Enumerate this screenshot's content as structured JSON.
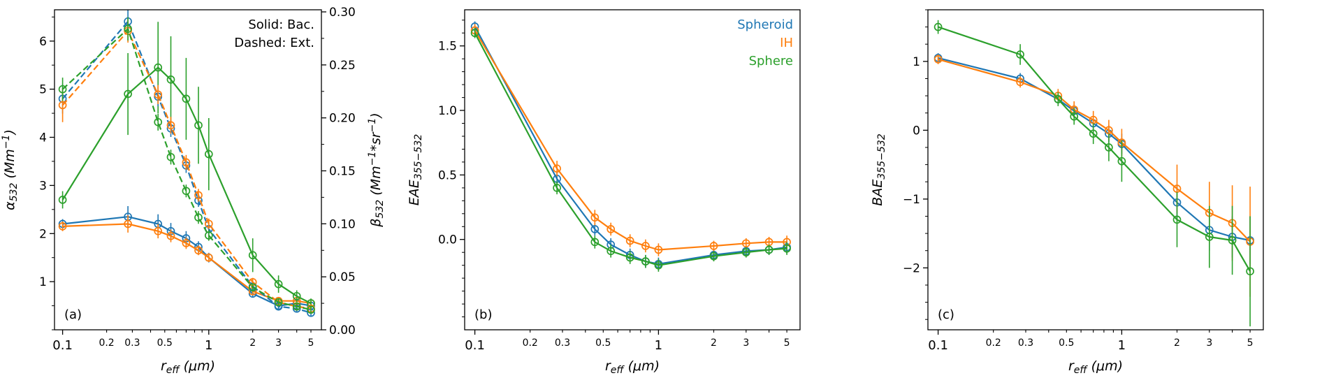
{
  "figure": {
    "background": "#ffffff",
    "colors": {
      "spheroid": "#1f77b4",
      "ih": "#ff7f0e",
      "sphere": "#2ca02c",
      "axis": "#000000"
    }
  },
  "chart_data": [
    {
      "id": "a",
      "type": "line",
      "panel_label": "(a)",
      "xlabel": "r_{eff} (μm)",
      "ylabel": "α_{532} (Mm^{−1})",
      "ylabel_right": "β_{532} (Mm^{−1}*sr^{−1})",
      "xscale": "log",
      "xlim": [
        0.088,
        5.9
      ],
      "xticks": {
        "major_values": [
          0.1,
          1
        ],
        "major_labels": [
          "0.1",
          "1"
        ],
        "minor_labeled_values": [
          0.2,
          0.3,
          0.5,
          2,
          3,
          5
        ],
        "minor_labels": [
          "0.2",
          "0.3",
          "0.5",
          "2",
          "3",
          "5"
        ],
        "minor_values": [
          0.2,
          0.3,
          0.4,
          0.5,
          0.6,
          0.7,
          0.8,
          0.9,
          2,
          3,
          4,
          5
        ]
      },
      "ylim": [
        0,
        6.65
      ],
      "yticks": {
        "values": [
          1,
          2,
          3,
          4,
          5,
          6
        ],
        "labels": [
          "1",
          "2",
          "3",
          "4",
          "5",
          "6"
        ],
        "minor_step": 0.5
      },
      "ylim_right": [
        0,
        0.302
      ],
      "yticks_right": {
        "values": [
          0,
          0.05,
          0.1,
          0.15,
          0.2,
          0.25,
          0.3
        ],
        "labels": [
          "0.00",
          "0.05",
          "0.10",
          "0.15",
          "0.20",
          "0.25",
          "0.30"
        ],
        "minor_step": 0.025
      },
      "legend": {
        "position": "top-right",
        "items": [
          {
            "label": "Solid: Bac.",
            "color": "#000000"
          },
          {
            "label": "Dashed: Ext.",
            "color": "#000000"
          }
        ]
      },
      "x": [
        0.1,
        0.28,
        0.45,
        0.55,
        0.7,
        0.85,
        1.0,
        2.0,
        3.0,
        4.0,
        5.0
      ],
      "series": [
        {
          "name": "Spheroid backscatter",
          "color": "#1f77b4",
          "style": "solid",
          "axis": "left",
          "values": [
            2.2,
            2.35,
            2.2,
            2.05,
            1.9,
            1.72,
            1.5,
            0.75,
            0.5,
            0.55,
            0.5
          ],
          "errors": [
            0.1,
            0.22,
            0.2,
            0.17,
            0.15,
            0.12,
            0.1,
            0.08,
            0.06,
            0.06,
            0.06
          ]
        },
        {
          "name": "IH backscatter",
          "color": "#ff7f0e",
          "style": "solid",
          "axis": "left",
          "values": [
            2.15,
            2.2,
            2.05,
            1.95,
            1.8,
            1.65,
            1.5,
            0.8,
            0.6,
            0.6,
            0.55
          ],
          "errors": [
            0.1,
            0.18,
            0.15,
            0.13,
            0.12,
            0.1,
            0.09,
            0.08,
            0.06,
            0.06,
            0.06
          ]
        },
        {
          "name": "Sphere backscatter",
          "color": "#2ca02c",
          "style": "solid",
          "axis": "left",
          "values": [
            2.7,
            4.9,
            5.45,
            5.2,
            4.8,
            4.25,
            3.65,
            1.55,
            0.95,
            0.7,
            0.55
          ],
          "errors": [
            0.18,
            0.85,
            0.95,
            0.9,
            0.85,
            0.8,
            0.75,
            0.35,
            0.18,
            0.12,
            0.1
          ]
        },
        {
          "name": "Spheroid extinction",
          "color": "#1f77b4",
          "style": "dashed",
          "axis": "right",
          "values": [
            0.218,
            0.291,
            0.22,
            0.19,
            0.155,
            0.122,
            0.095,
            0.041,
            0.022,
            0.02,
            0.016
          ],
          "errors": [
            0.014,
            0.011,
            0.009,
            0.008,
            0.007,
            0.006,
            0.005,
            0.004,
            0.003,
            0.003,
            0.003
          ]
        },
        {
          "name": "IH extinction",
          "color": "#ff7f0e",
          "style": "dashed",
          "axis": "right",
          "values": [
            0.212,
            0.282,
            0.222,
            0.193,
            0.158,
            0.127,
            0.1,
            0.045,
            0.026,
            0.022,
            0.02
          ],
          "errors": [
            0.016,
            0.011,
            0.009,
            0.008,
            0.007,
            0.006,
            0.005,
            0.004,
            0.003,
            0.003,
            0.003
          ]
        },
        {
          "name": "Sphere extinction",
          "color": "#2ca02c",
          "style": "dashed",
          "axis": "right",
          "values": [
            0.227,
            0.284,
            0.196,
            0.163,
            0.131,
            0.106,
            0.089,
            0.04,
            0.026,
            0.022,
            0.019
          ],
          "errors": [
            0.011,
            0.011,
            0.008,
            0.007,
            0.006,
            0.006,
            0.005,
            0.004,
            0.003,
            0.003,
            0.003
          ]
        }
      ]
    },
    {
      "id": "b",
      "type": "line",
      "panel_label": "(b)",
      "xlabel": "r_{eff} (μm)",
      "ylabel": "EAE_{355−532}",
      "xscale": "log",
      "xlim": [
        0.088,
        5.9
      ],
      "xticks": {
        "major_values": [
          0.1,
          1
        ],
        "major_labels": [
          "0.1",
          "1"
        ],
        "minor_labeled_values": [
          0.2,
          0.3,
          0.5,
          2,
          3,
          5
        ],
        "minor_labels": [
          "0.2",
          "0.3",
          "0.5",
          "2",
          "3",
          "5"
        ],
        "minor_values": [
          0.2,
          0.3,
          0.4,
          0.5,
          0.6,
          0.7,
          0.8,
          0.9,
          2,
          3,
          4,
          5
        ]
      },
      "ylim": [
        -0.7,
        1.78
      ],
      "yticks": {
        "values": [
          0,
          0.5,
          1,
          1.5
        ],
        "labels": [
          "0.0",
          "0.5",
          "1.0",
          "1.5"
        ],
        "minor_step": 0.1
      },
      "legend": {
        "position": "top-right",
        "items": [
          {
            "label": "Spheroid",
            "color": "#1f77b4"
          },
          {
            "label": "IH",
            "color": "#ff7f0e"
          },
          {
            "label": "Sphere",
            "color": "#2ca02c"
          }
        ]
      },
      "x": [
        0.1,
        0.28,
        0.45,
        0.55,
        0.7,
        0.85,
        1.0,
        2.0,
        3.0,
        4.0,
        5.0
      ],
      "series": [
        {
          "name": "Spheroid",
          "color": "#1f77b4",
          "style": "solid",
          "axis": "left",
          "values": [
            1.65,
            0.47,
            0.08,
            -0.04,
            -0.12,
            -0.17,
            -0.19,
            -0.12,
            -0.09,
            -0.08,
            -0.06
          ],
          "errors": [
            0.04,
            0.05,
            0.05,
            0.05,
            0.05,
            0.05,
            0.05,
            0.04,
            0.04,
            0.04,
            0.05
          ]
        },
        {
          "name": "IH",
          "color": "#ff7f0e",
          "style": "solid",
          "axis": "left",
          "values": [
            1.62,
            0.55,
            0.17,
            0.08,
            -0.01,
            -0.05,
            -0.08,
            -0.05,
            -0.03,
            -0.02,
            -0.02
          ],
          "errors": [
            0.05,
            0.06,
            0.06,
            0.05,
            0.05,
            0.05,
            0.05,
            0.04,
            0.04,
            0.04,
            0.05
          ]
        },
        {
          "name": "Sphere",
          "color": "#2ca02c",
          "style": "solid",
          "axis": "left",
          "values": [
            1.6,
            0.4,
            -0.02,
            -0.09,
            -0.14,
            -0.17,
            -0.2,
            -0.13,
            -0.1,
            -0.08,
            -0.07
          ],
          "errors": [
            0.04,
            0.05,
            0.05,
            0.05,
            0.05,
            0.05,
            0.05,
            0.04,
            0.04,
            0.04,
            0.05
          ]
        }
      ]
    },
    {
      "id": "c",
      "type": "line",
      "panel_label": "(c)",
      "xlabel": "r_{eff} (μm)",
      "ylabel": "BAE_{355−532}",
      "xscale": "log",
      "xlim": [
        0.088,
        5.9
      ],
      "xticks": {
        "major_values": [
          0.1,
          1
        ],
        "major_labels": [
          "0.1",
          "1"
        ],
        "minor_labeled_values": [
          0.2,
          0.3,
          0.5,
          2,
          3,
          5
        ],
        "minor_labels": [
          "0.2",
          "0.3",
          "0.5",
          "2",
          "3",
          "5"
        ],
        "minor_values": [
          0.2,
          0.3,
          0.4,
          0.5,
          0.6,
          0.7,
          0.8,
          0.9,
          2,
          3,
          4,
          5
        ]
      },
      "ylim": [
        -2.9,
        1.75
      ],
      "yticks": {
        "values": [
          -2,
          -1,
          0,
          1
        ],
        "labels": [
          "−2",
          "−1",
          "0",
          "1"
        ],
        "minor_step": 0.25
      },
      "x": [
        0.1,
        0.28,
        0.45,
        0.55,
        0.7,
        0.85,
        1.0,
        2.0,
        3.0,
        4.0,
        5.0
      ],
      "series": [
        {
          "name": "Spheroid",
          "color": "#1f77b4",
          "style": "solid",
          "axis": "left",
          "values": [
            1.05,
            0.75,
            0.45,
            0.28,
            0.1,
            -0.05,
            -0.2,
            -1.05,
            -1.45,
            -1.55,
            -1.6
          ],
          "errors": [
            0.07,
            0.08,
            0.08,
            0.1,
            0.1,
            0.12,
            0.15,
            0.25,
            0.3,
            0.3,
            0.35
          ]
        },
        {
          "name": "IH",
          "color": "#ff7f0e",
          "style": "solid",
          "axis": "left",
          "values": [
            1.03,
            0.7,
            0.5,
            0.3,
            0.15,
            0,
            -0.18,
            -0.85,
            -1.2,
            -1.35,
            -1.62
          ],
          "errors": [
            0.07,
            0.08,
            0.1,
            0.12,
            0.13,
            0.15,
            0.2,
            0.35,
            0.45,
            0.55,
            0.8
          ]
        },
        {
          "name": "Sphere",
          "color": "#2ca02c",
          "style": "solid",
          "axis": "left",
          "values": [
            1.5,
            1.1,
            0.45,
            0.2,
            -0.05,
            -0.25,
            -0.45,
            -1.3,
            -1.55,
            -1.6,
            -2.05
          ],
          "errors": [
            0.1,
            0.15,
            0.1,
            0.12,
            0.15,
            0.2,
            0.3,
            0.4,
            0.45,
            0.5,
            0.8
          ]
        }
      ]
    }
  ]
}
